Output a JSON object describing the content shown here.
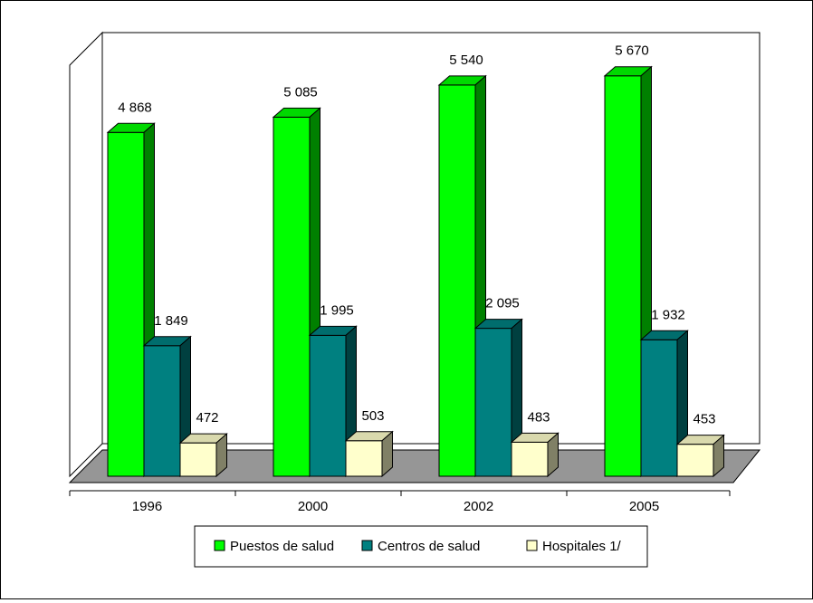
{
  "chart_data": {
    "type": "bar",
    "title": "",
    "xlabel": "",
    "ylabel": "",
    "categories": [
      "1996",
      "2000",
      "2002",
      "2005"
    ],
    "series": [
      {
        "name": "Puestos de salud",
        "color": "#00ff00",
        "values": [
          4868,
          5085,
          5540,
          5670
        ],
        "labels": [
          "4 868",
          "5 085",
          "5 540",
          "5 670"
        ]
      },
      {
        "name": "Centros de salud",
        "color": "#008080",
        "values": [
          1849,
          1995,
          2095,
          1932
        ],
        "labels": [
          "1 849",
          "1 995",
          "2 095",
          "1 932"
        ]
      },
      {
        "name": "Hospitales 1/",
        "color": "#ffffcc",
        "values": [
          472,
          503,
          483,
          453
        ],
        "labels": [
          "472",
          "503",
          "483",
          "453"
        ]
      }
    ],
    "ylim": [
      0,
      6000
    ],
    "grid": false,
    "three_d": true,
    "legend": "bottom"
  }
}
